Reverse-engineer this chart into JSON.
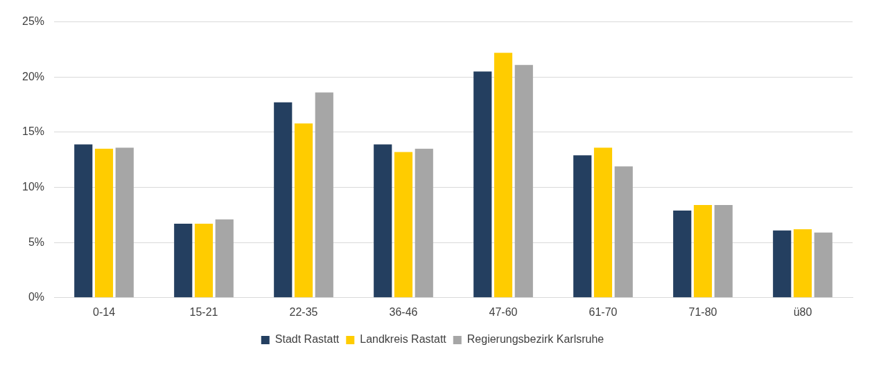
{
  "chart_data": {
    "type": "bar",
    "categories": [
      "0-14",
      "15-21",
      "22-35",
      "36-46",
      "47-60",
      "61-70",
      "71-80",
      "ü80"
    ],
    "series": [
      {
        "name": "Stadt Rastatt",
        "color": "#243f60",
        "values": [
          13.9,
          6.7,
          17.7,
          13.9,
          20.5,
          12.9,
          7.9,
          6.1
        ]
      },
      {
        "name": "Landkreis Rastatt",
        "color": "#ffcc00",
        "values": [
          13.5,
          6.7,
          15.8,
          13.2,
          22.2,
          13.6,
          8.4,
          6.2
        ]
      },
      {
        "name": "Regierungsbezirk Karlsruhe",
        "color": "#a6a6a6",
        "values": [
          13.6,
          7.1,
          18.6,
          13.5,
          21.1,
          11.9,
          8.4,
          5.9
        ]
      }
    ],
    "ylim": [
      0,
      25
    ],
    "yticks": [
      {
        "value": 0,
        "label": "0%"
      },
      {
        "value": 5,
        "label": "5%"
      },
      {
        "value": 10,
        "label": "10%"
      },
      {
        "value": 15,
        "label": "15%"
      },
      {
        "value": 20,
        "label": "20%"
      },
      {
        "value": 25,
        "label": "25%"
      }
    ],
    "grid": "y",
    "legend": "bottom"
  }
}
